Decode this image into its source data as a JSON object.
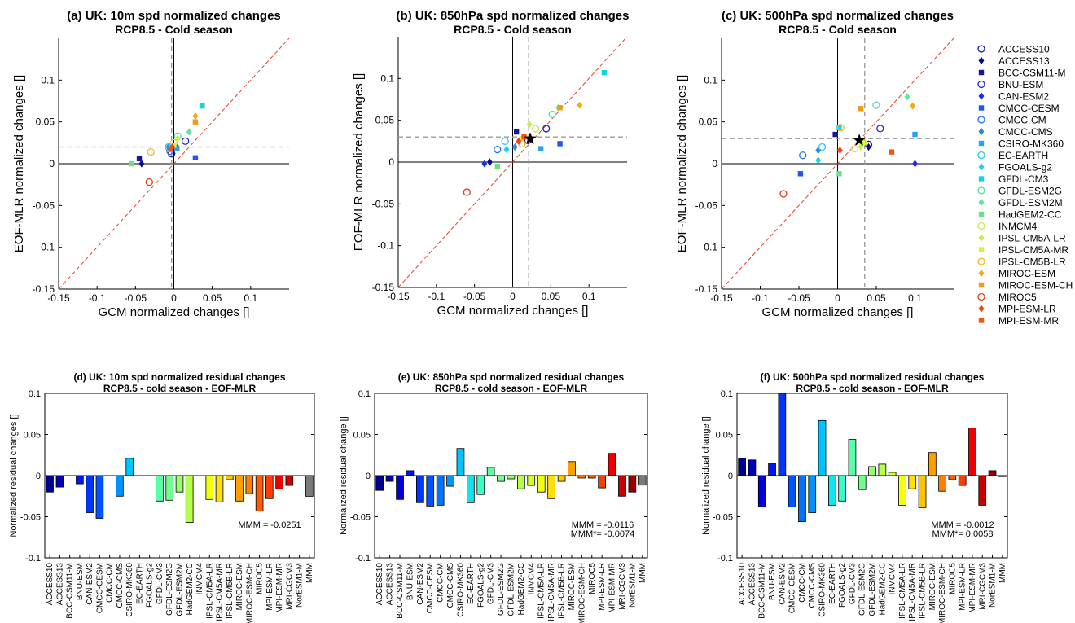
{
  "models": [
    {
      "name": "ACCESS10",
      "marker": "circle-open",
      "color": "#1a1aa8"
    },
    {
      "name": "ACCESS13",
      "marker": "diamond",
      "color": "#0a0a8c"
    },
    {
      "name": "BCC-CSM11-M",
      "marker": "square",
      "color": "#1515a0"
    },
    {
      "name": "BNU-ESM",
      "marker": "circle-open",
      "color": "#2323d6"
    },
    {
      "name": "CAN-ESM2",
      "marker": "diamond",
      "color": "#1a2ee8"
    },
    {
      "name": "CMCC-CESM",
      "marker": "square",
      "color": "#1f55f0"
    },
    {
      "name": "CMCC-CM",
      "marker": "circle-open",
      "color": "#2a6cf0"
    },
    {
      "name": "CMCC-CMS",
      "marker": "diamond",
      "color": "#2b86f5"
    },
    {
      "name": "CSIRO-MK360",
      "marker": "square",
      "color": "#2ba0f0"
    },
    {
      "name": "EC-EARTH",
      "marker": "circle-open",
      "color": "#2cc8e8"
    },
    {
      "name": "FGOALS-g2",
      "marker": "diamond",
      "color": "#1ad6e6"
    },
    {
      "name": "GFDL-CM3",
      "marker": "square",
      "color": "#14d2e2"
    },
    {
      "name": "GFDL-ESM2G",
      "marker": "circle-open",
      "color": "#55dba4"
    },
    {
      "name": "GFDL-ESM2M",
      "marker": "diamond",
      "color": "#5ce89a"
    },
    {
      "name": "HadGEM2-CC",
      "marker": "square",
      "color": "#6ee08c"
    },
    {
      "name": "INMCM4",
      "marker": "circle-open",
      "color": "#c8e85a"
    },
    {
      "name": "IPSL-CM5A-LR",
      "marker": "diamond",
      "color": "#c2f040"
    },
    {
      "name": "IPSL-CM5A-MR",
      "marker": "square",
      "color": "#d8f040"
    },
    {
      "name": "IPSL-CM5B-LR",
      "marker": "circle-open",
      "color": "#f2b820"
    },
    {
      "name": "MIROC-ESM",
      "marker": "diamond",
      "color": "#f5a818"
    },
    {
      "name": "MIROC-ESM-CH",
      "marker": "square",
      "color": "#f59a14"
    },
    {
      "name": "MIROC5",
      "marker": "circle-open",
      "color": "#d8401c"
    },
    {
      "name": "MPI-ESM-LR",
      "marker": "diamond",
      "color": "#f04418"
    },
    {
      "name": "MPI-ESM-MR",
      "marker": "square",
      "color": "#f2521c"
    }
  ],
  "scatter_charts": [
    {
      "title": "(a)  UK: 10m spd normalized changes",
      "subtitle": "RCP8.5 - Cold season",
      "xlabel": "GCM  normalized changes []",
      "ylabel": "EOF-MLR normalized changes []",
      "xlim": [
        -0.15,
        0.15
      ],
      "ylim": [
        -0.15,
        0.15
      ],
      "xticks": [
        -0.15,
        -0.1,
        -0.05,
        0,
        0.05,
        0.1
      ],
      "xticklabels": [
        "-0.15",
        "-0.1",
        "-0.05",
        "0",
        "0.05",
        "0.1"
      ],
      "yticks": [
        -0.15,
        -0.1,
        -0.05,
        0,
        0.05,
        0.1
      ],
      "yticklabels": [
        "-0.15",
        "-0.1",
        "-0.05",
        "0",
        "0.05",
        "0.1"
      ],
      "ref_x": -0.003,
      "ref_y": 0.02,
      "star": null,
      "points": [
        [
          -0.003,
          0.012
        ],
        [
          -0.042,
          0.0
        ],
        [
          -0.045,
          0.006
        ],
        [
          0.015,
          0.027
        ],
        [
          0.004,
          0.02
        ],
        [
          0.028,
          0.007
        ],
        [
          -0.005,
          0.015
        ],
        [
          -0.007,
          0.02
        ],
        [
          0.004,
          0.018
        ],
        [
          -0.007,
          0.02
        ],
        [
          -0.004,
          0.022
        ],
        [
          0.037,
          0.069
        ],
        [
          0.005,
          0.033
        ],
        [
          0.02,
          0.038
        ],
        [
          -0.055,
          0.0
        ],
        [
          0.0,
          0.025
        ],
        [
          0.005,
          0.03
        ],
        [
          0.0,
          0.022
        ],
        [
          -0.03,
          0.014
        ],
        [
          0.028,
          0.057
        ],
        [
          0.028,
          0.05
        ],
        [
          -0.032,
          -0.022
        ],
        [
          -0.002,
          0.02
        ],
        [
          -0.004,
          0.017
        ]
      ]
    },
    {
      "title": "(b)  UK: 850hPa spd normalized changes",
      "subtitle": "RCP8.5 - Cold season",
      "xlabel": "GCM  normalized changes []",
      "ylabel": "EOF-MLR normalized changes []",
      "xlim": [
        -0.15,
        0.15
      ],
      "ylim": [
        -0.15,
        0.15
      ],
      "xticks": [
        -0.15,
        -0.1,
        -0.05,
        0,
        0.05,
        0.1
      ],
      "xticklabels": [
        "-0.15",
        "-0.1",
        "-0.05",
        "0",
        "0.05",
        "0.1"
      ],
      "yticks": [
        -0.15,
        -0.1,
        -0.05,
        0,
        0.05,
        0.1
      ],
      "yticklabels": [
        "-0.15",
        "-0.1",
        "-0.05",
        "0",
        "0.05",
        "0.1"
      ],
      "ref_x": 0.021,
      "ref_y": 0.03,
      "star": [
        0.023,
        0.028
      ],
      "points": [
        [
          0.02,
          0.026
        ],
        [
          -0.03,
          0.0
        ],
        [
          0.005,
          0.036
        ],
        [
          0.044,
          0.04
        ],
        [
          -0.037,
          -0.002
        ],
        [
          0.062,
          0.022
        ],
        [
          -0.02,
          0.015
        ],
        [
          0.003,
          0.018
        ],
        [
          0.037,
          0.016
        ],
        [
          -0.01,
          0.025
        ],
        [
          -0.008,
          0.015
        ],
        [
          0.12,
          0.107
        ],
        [
          0.052,
          0.057
        ],
        [
          0.06,
          0.065
        ],
        [
          -0.02,
          -0.005
        ],
        [
          0.03,
          0.04
        ],
        [
          0.022,
          0.045
        ],
        [
          0.012,
          0.028
        ],
        [
          0.012,
          0.022
        ],
        [
          0.088,
          0.068
        ],
        [
          0.062,
          0.065
        ],
        [
          -0.06,
          -0.036
        ],
        [
          0.008,
          0.025
        ],
        [
          0.015,
          0.03
        ]
      ]
    },
    {
      "title": "(c)  UK: 500hPa spd normalized changes",
      "subtitle": "RCP8.5 - Cold season",
      "xlabel": "GCM  normalized changes []",
      "ylabel": "EOF-MLR normalized changes []",
      "xlim": [
        -0.15,
        0.15
      ],
      "ylim": [
        -0.15,
        0.15
      ],
      "xticks": [
        -0.15,
        -0.1,
        -0.05,
        0,
        0.05,
        0.1
      ],
      "xticklabels": [
        "-0.15",
        "-0.1",
        "-0.05",
        "0",
        "0.05",
        "0.1"
      ],
      "yticks": [
        -0.15,
        -0.1,
        -0.05,
        0,
        0.05,
        0.1
      ],
      "yticklabels": [
        "-0.15",
        "-0.1",
        "-0.05",
        "0",
        "0.05",
        "0.1"
      ],
      "ref_x": 0.035,
      "ref_y": 0.03,
      "star": [
        0.028,
        0.028
      ],
      "points": [
        [
          0.04,
          0.023
        ],
        [
          0.04,
          0.02
        ],
        [
          -0.003,
          0.035
        ],
        [
          0.055,
          0.042
        ],
        [
          0.1,
          0.0
        ],
        [
          -0.048,
          -0.012
        ],
        [
          -0.045,
          0.01
        ],
        [
          -0.025,
          0.016
        ],
        [
          0.1,
          0.035
        ],
        [
          -0.02,
          0.02
        ],
        [
          -0.025,
          0.004
        ],
        [
          0.002,
          0.043
        ],
        [
          0.05,
          0.07
        ],
        [
          0.09,
          0.08
        ],
        [
          0.002,
          -0.012
        ],
        [
          0.022,
          0.018
        ],
        [
          0.03,
          0.02
        ],
        [
          0.035,
          0.025
        ],
        [
          0.004,
          0.043
        ],
        [
          0.097,
          0.069
        ],
        [
          0.03,
          0.066
        ],
        [
          -0.07,
          -0.036
        ],
        [
          0.003,
          0.016
        ],
        [
          0.07,
          0.014
        ]
      ]
    }
  ],
  "bar_charts": [
    {
      "title": "(d)  UK: 10m spd normalized residual changes",
      "subtitle": "RCP8.5 - cold season - EOF-MLR",
      "ylabel": "Normalized residual changes []",
      "ylim": [
        -0.1,
        0.1
      ],
      "yticks": [
        -0.1,
        -0.05,
        0,
        0.05,
        0.1
      ],
      "yticklabels": [
        "-0.1",
        "-0.05",
        "0",
        "0.05",
        "0.1"
      ],
      "annotation": [
        "MMM = -0.0251"
      ],
      "categories": [
        "ACCESS10",
        "ACCESS13",
        "BCC-CSM11-M",
        "BNU-ESM",
        "CAN-ESM2",
        "CMCC-CESM",
        "CMCC-CM",
        "CMCC-CMS",
        "CSIRO-MK360",
        "EC-EARTH",
        "FGOALS-g2",
        "GFDL-CM3",
        "GFDL-ESM2G",
        "GFDL-ESM2M",
        "HadGEM2-CC",
        "INMCM4",
        "IPSL-CM5A-LR",
        "IPSL-CM5A-MR",
        "IPSL-CM5B-LR",
        "MIROC-ESM",
        "MIROC-ESM-CH",
        "MIROC5",
        "MPI-ESM-LR",
        "MPI-ESM-MR",
        "MRI-CGCM3",
        "NorESM1-M",
        "MMM"
      ],
      "values": [
        -0.02,
        -0.014,
        0,
        -0.01,
        -0.045,
        -0.052,
        0,
        -0.025,
        0.021,
        0,
        0,
        -0.031,
        -0.03,
        -0.02,
        -0.057,
        0,
        -0.029,
        -0.032,
        -0.005,
        -0.031,
        -0.022,
        -0.043,
        -0.028,
        -0.016,
        -0.012,
        0,
        -0.0251
      ]
    },
    {
      "title": "(e)  UK: 850hPa spd normalized residual changes",
      "subtitle": "RCP8.5 - cold season - EOF-MLR",
      "ylabel": "Normalized residual change []",
      "ylim": [
        -0.1,
        0.1
      ],
      "yticks": [
        -0.1,
        -0.05,
        0,
        0.05,
        0.1
      ],
      "yticklabels": [
        "-0.1",
        "-0.05",
        "0",
        "0.05",
        "0.1"
      ],
      "annotation": [
        "MMM = -0.0116",
        "MMM*= -0.0074"
      ],
      "categories": [
        "ACCESS10",
        "ACCESS13",
        "BCC-CSM11-M",
        "BNU-ESM",
        "CAN-ESM2",
        "CMCC-CESM",
        "CMCC-CM",
        "CMCC-CMS",
        "CSIRO-MK360",
        "EC-EARTH",
        "FGOALS-g2",
        "GFDL-CM3",
        "GFDL-ESM2G",
        "GFDL-ESM2M",
        "HadGEM2-CC",
        "INMCM4",
        "IPSL-CM5A-LR",
        "IPSL-CM5A-MR",
        "IPSL-CM5B-LR",
        "MIROC-ESM",
        "MIROC-ESM-CH",
        "MIROC5",
        "MPI-ESM-LR",
        "MPI-ESM-MR",
        "MRI-CGCM3",
        "NorESM1-M",
        "MMM"
      ],
      "values": [
        -0.018,
        -0.007,
        -0.029,
        0.006,
        -0.033,
        -0.037,
        -0.036,
        -0.013,
        0.033,
        -0.033,
        -0.023,
        0.01,
        -0.007,
        -0.004,
        -0.016,
        -0.012,
        -0.02,
        -0.028,
        -0.007,
        0.017,
        -0.003,
        -0.003,
        -0.015,
        0.027,
        -0.025,
        -0.02,
        -0.0116
      ]
    },
    {
      "title": "(f)  UK: 500hPa spd normalized residual changes",
      "subtitle": "RCP8.5 - cold season - EOF-MLR",
      "ylabel": "Normalized residual change []",
      "ylim": [
        -0.1,
        0.1
      ],
      "yticks": [
        -0.1,
        -0.05,
        0,
        0.05,
        0.1
      ],
      "yticklabels": [
        "-0.1",
        "-0.05",
        "0",
        "0.05",
        "0.1"
      ],
      "annotation": [
        "MMM = -0.0012",
        "MMM*= 0.0058"
      ],
      "categories": [
        "ACCESS10",
        "ACCESS13",
        "BCC-CSM11-M",
        "BNU-ESM",
        "CAN-ESM2",
        "CMCC-CESM",
        "CMCC-CM",
        "CMCC-CMS",
        "CSIRO-MK360",
        "EC-EARTH",
        "FGOALS-g2",
        "GFDL-CM3",
        "GFDL-ESM2G",
        "GFDL-ESM2M",
        "HadGEM2-CC",
        "INMCM4",
        "IPSL-CM5A-LR",
        "IPSL-CM5A-MR",
        "IPSL-CM5B-LR",
        "MIROC-ESM",
        "MIROC-ESM-CH",
        "MIROC5",
        "MPI-ESM-LR",
        "MPI-ESM-MR",
        "MRI-CGCM3",
        "NorESM1-M",
        "MMM"
      ],
      "values": [
        0.021,
        0.019,
        -0.038,
        0.015,
        0.1,
        -0.038,
        -0.056,
        -0.045,
        0.067,
        -0.036,
        -0.031,
        0.044,
        -0.017,
        0.011,
        0.014,
        0.004,
        -0.036,
        -0.016,
        -0.039,
        0.028,
        -0.019,
        -0.005,
        -0.012,
        0.058,
        -0.036,
        0.006,
        -0.0012
      ]
    }
  ],
  "bar_colors": [
    "#00008f",
    "#0000b4",
    "#0000dc",
    "#0014ff",
    "#0034ff",
    "#0054ff",
    "#0074ff",
    "#0094ff",
    "#00c4ff",
    "#10e4ef",
    "#38ffc6",
    "#58ffa6",
    "#70ff8e",
    "#94ff6a",
    "#b4ff4a",
    "#d4ff2a",
    "#f4ff0a",
    "#ffe000",
    "#ffc400",
    "#ffa000",
    "#ff8000",
    "#ff5c00",
    "#ff3c00",
    "#ef0000",
    "#c80000",
    "#980000",
    "#7a7a7a"
  ],
  "chart_data": [
    {
      "type": "scatter",
      "ref": "scatter_charts.0"
    },
    {
      "type": "scatter",
      "ref": "scatter_charts.1"
    },
    {
      "type": "scatter",
      "ref": "scatter_charts.2"
    },
    {
      "type": "bar",
      "ref": "bar_charts.0"
    },
    {
      "type": "bar",
      "ref": "bar_charts.1"
    },
    {
      "type": "bar",
      "ref": "bar_charts.2"
    }
  ]
}
